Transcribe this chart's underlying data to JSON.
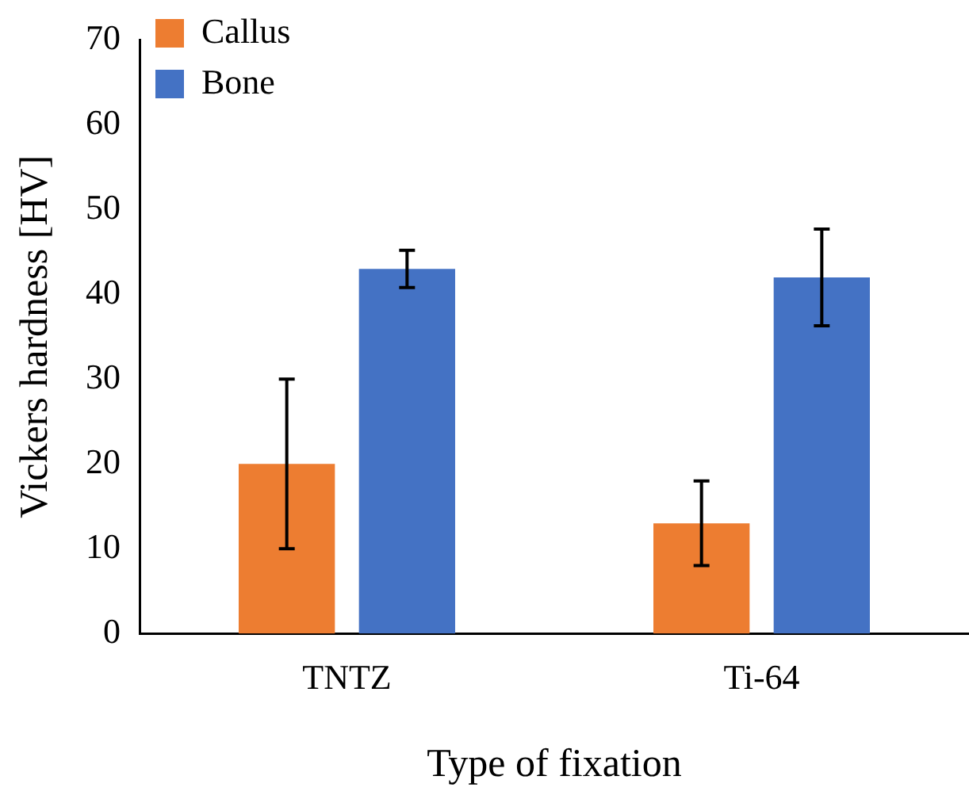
{
  "chart_data": {
    "type": "bar",
    "xlabel": "Type of fixation",
    "ylabel": "Vickers hardness [HV]",
    "categories": [
      "TNTZ",
      "Ti-64"
    ],
    "series": [
      {
        "name": "Callus",
        "color": "#ed7d31",
        "values": [
          20,
          13
        ],
        "errors": [
          10,
          5
        ]
      },
      {
        "name": "Bone",
        "color": "#4472c4",
        "values": [
          43,
          42
        ],
        "errors": [
          2.2,
          5.7
        ]
      }
    ],
    "ylim": [
      0,
      70
    ],
    "yticks": [
      0,
      10,
      20,
      30,
      40,
      50,
      60,
      70
    ],
    "grid": false,
    "legend": "top left"
  }
}
